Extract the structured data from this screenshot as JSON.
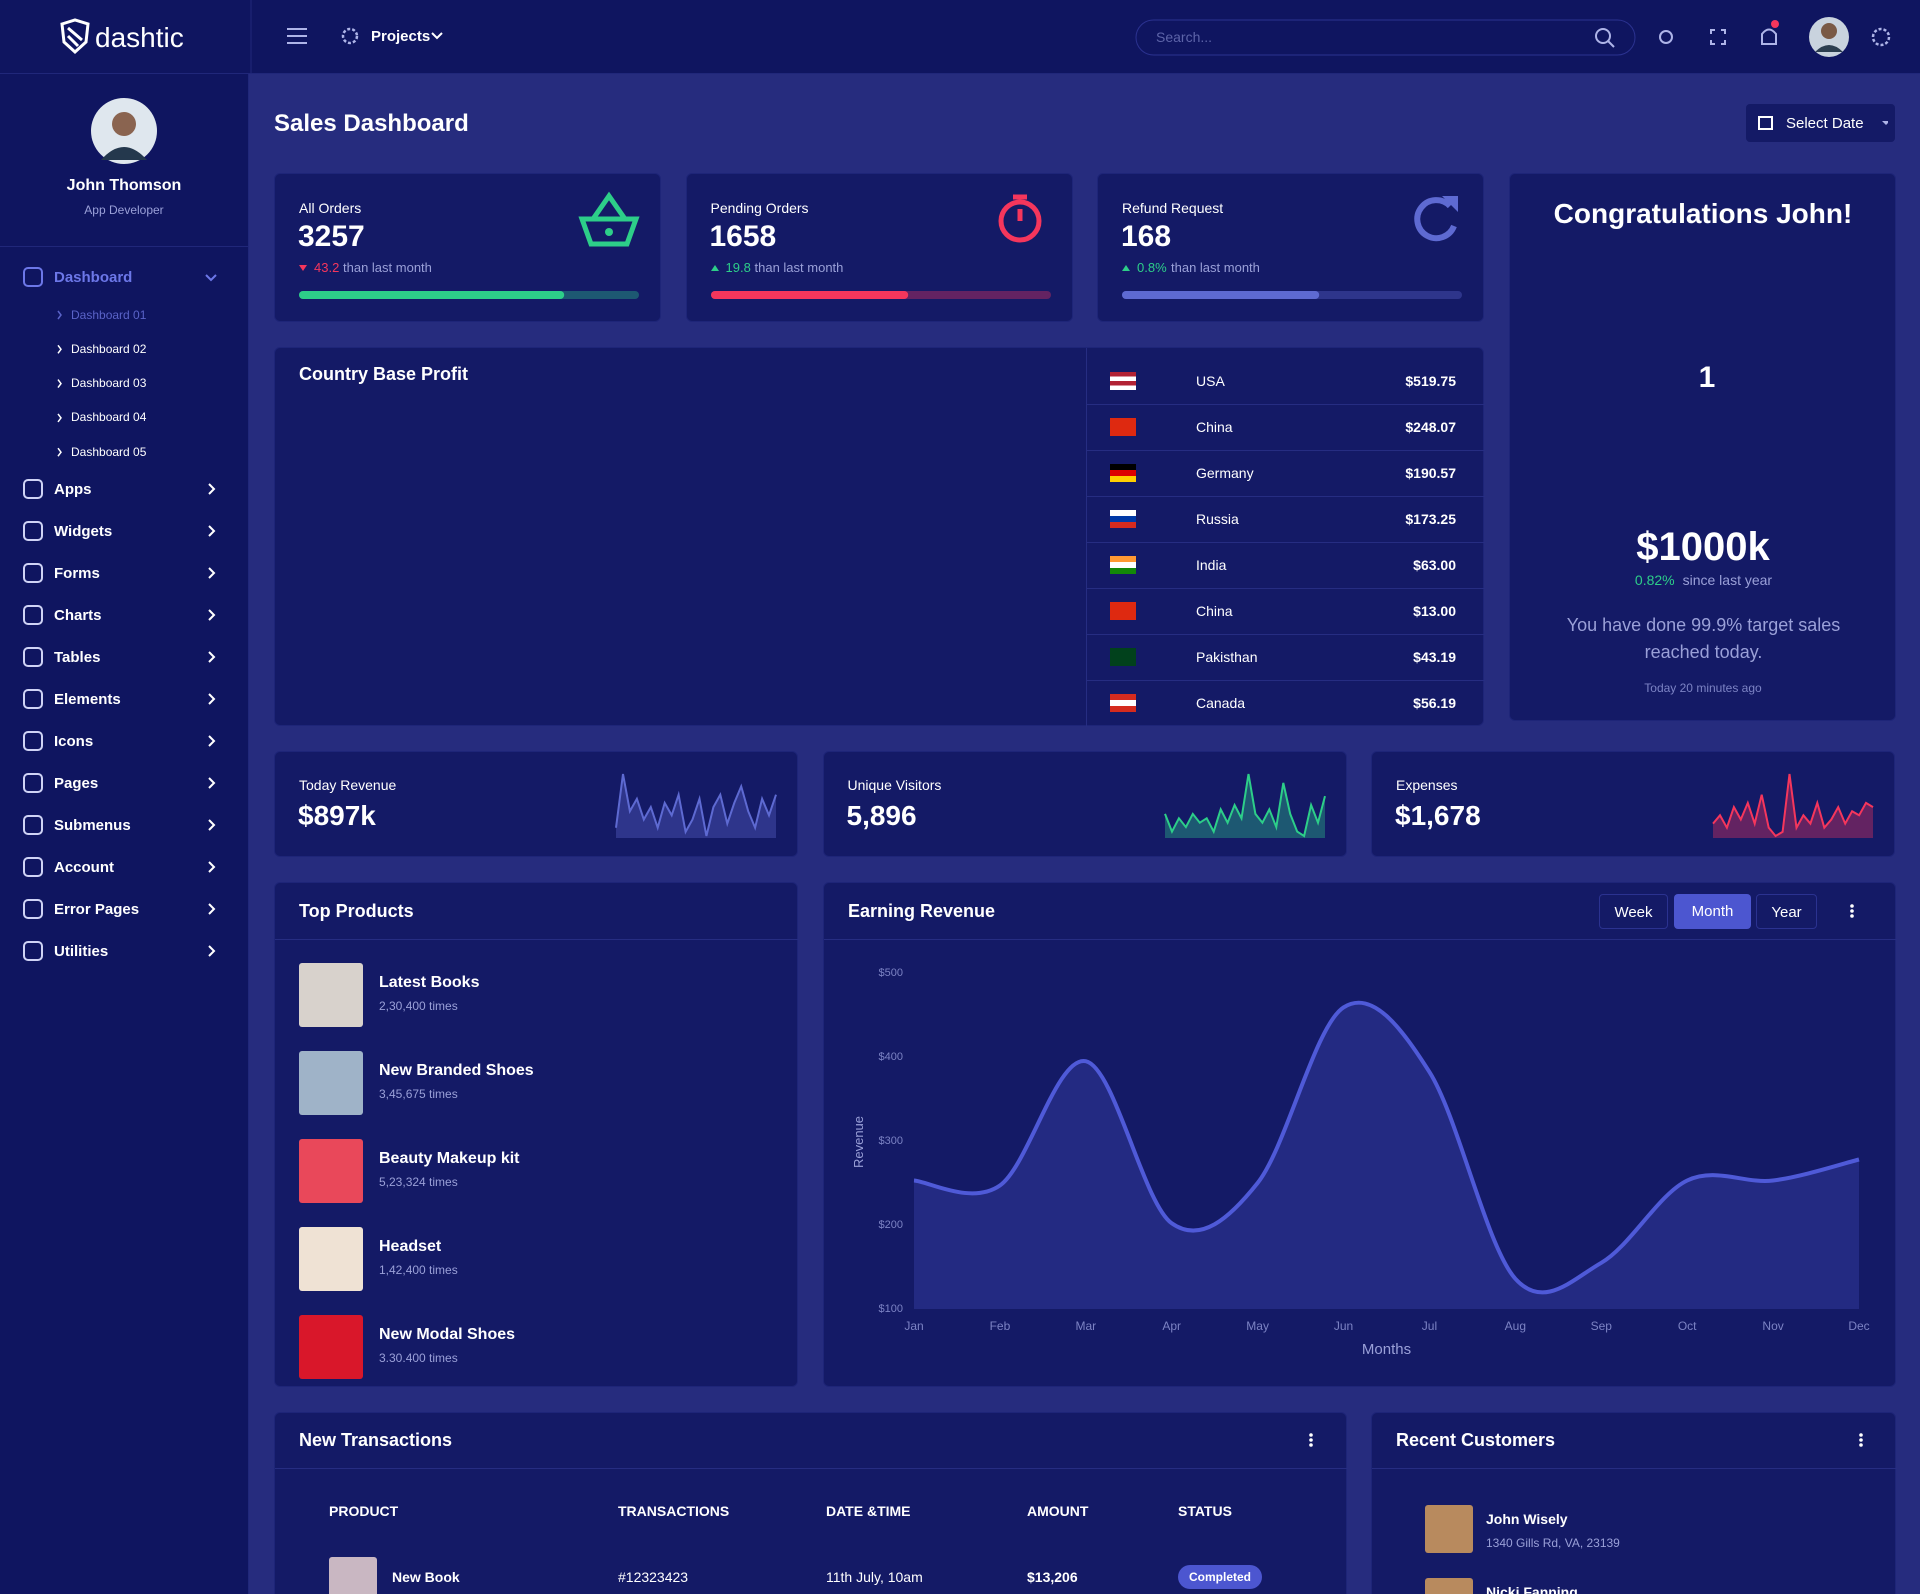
{
  "header": {
    "brand": "dashtic",
    "projects": "Projects",
    "search_placeholder": "Search..."
  },
  "sidebar": {
    "user_name": "John Thomson",
    "user_role": "App Developer",
    "menu": [
      {
        "label": "Dashboard",
        "submenu": [
          "Dashboard 01",
          "Dashboard 02",
          "Dashboard 03",
          "Dashboard 04",
          "Dashboard 05"
        ]
      },
      {
        "label": "Apps"
      },
      {
        "label": "Widgets"
      },
      {
        "label": "Forms"
      },
      {
        "label": "Charts"
      },
      {
        "label": "Tables"
      },
      {
        "label": "Elements"
      },
      {
        "label": "Icons"
      },
      {
        "label": "Pages"
      },
      {
        "label": "Submenus"
      },
      {
        "label": "Account"
      },
      {
        "label": "Error Pages"
      },
      {
        "label": "Utilities"
      }
    ]
  },
  "page": {
    "title": "Sales Dashboard",
    "select_date": "Select Date"
  },
  "stats": [
    {
      "label": "All Orders",
      "value": "3257",
      "change": "43.2",
      "trend": "down",
      "note": "than last month",
      "progress": 78,
      "color": "#2dce89"
    },
    {
      "label": "Pending Orders",
      "value": "1658",
      "change": "19.8",
      "trend": "up",
      "note": "than last month",
      "progress": 58,
      "color": "#f5365c"
    },
    {
      "label": "Refund Request",
      "value": "168",
      "change": "0.8%",
      "trend": "up",
      "note": "than last month",
      "progress": 58,
      "color": "#5e6ad2"
    }
  ],
  "congrats": {
    "title": "Congratulations John!",
    "trophy_label": "1",
    "amount": "$1000k",
    "change": "0.82%",
    "change_note": "since last year",
    "message": "You have done 99.9% target sales reached today.",
    "time": "Today 20 minutes ago"
  },
  "country_profit": {
    "title": "Country Base Profit",
    "rows": [
      {
        "country": "USA",
        "amount": "$519.75",
        "flag": [
          "#b22234",
          "#ffffff",
          "#b22234",
          "#ffffff"
        ]
      },
      {
        "country": "China",
        "amount": "$248.07",
        "flag": [
          "#de2910"
        ]
      },
      {
        "country": "Germany",
        "amount": "$190.57",
        "flag": [
          "#000000",
          "#dd0000",
          "#ffce00"
        ]
      },
      {
        "country": "Russia",
        "amount": "$173.25",
        "flag": [
          "#ffffff",
          "#0039a6",
          "#d52b1e"
        ]
      },
      {
        "country": "India",
        "amount": "$63.00",
        "flag": [
          "#ff9933",
          "#ffffff",
          "#138808"
        ]
      },
      {
        "country": "China",
        "amount": "$13.00",
        "flag": [
          "#de2910"
        ]
      },
      {
        "country": "Pakisthan",
        "amount": "$43.19",
        "flag": [
          "#01411c",
          "#01411c"
        ]
      },
      {
        "country": "Canada",
        "amount": "$56.19",
        "flag": [
          "#d52b1e",
          "#ffffff",
          "#d52b1e"
        ]
      }
    ]
  },
  "mini_stats": [
    {
      "label": "Today Revenue",
      "value": "$897k",
      "color": "#5e6ad2",
      "trend": [
        20,
        85,
        40,
        55,
        30,
        45,
        20,
        50,
        35,
        60,
        15,
        30,
        55,
        10,
        45,
        60,
        25,
        50,
        70,
        40,
        20,
        55,
        35,
        60
      ]
    },
    {
      "label": "Unique Visitors",
      "value": "5,896",
      "color": "#2dce89",
      "trend": [
        40,
        20,
        35,
        25,
        40,
        30,
        35,
        20,
        45,
        30,
        50,
        35,
        85,
        40,
        30,
        45,
        25,
        75,
        40,
        20,
        15,
        50,
        30,
        60
      ]
    },
    {
      "label": "Expenses",
      "value": "$1,678",
      "color": "#f5365c",
      "trend": [
        35,
        45,
        30,
        55,
        40,
        60,
        35,
        70,
        30,
        20,
        25,
        95,
        30,
        45,
        35,
        60,
        30,
        40,
        55,
        35,
        50,
        45,
        60,
        55
      ]
    }
  ],
  "top_products": {
    "title": "Top Products",
    "items": [
      {
        "name": "Latest Books",
        "count": "2,30,400 times",
        "image_color": "#d8d2cc"
      },
      {
        "name": "New Branded Shoes",
        "count": "3,45,675 times",
        "image_color": "#9fb3c8"
      },
      {
        "name": "Beauty Makeup kit",
        "count": "5,23,324 times",
        "image_color": "#e9485a"
      },
      {
        "name": "Headset",
        "count": "1,42,400 times",
        "image_color": "#efe2d4"
      },
      {
        "name": "New Modal Shoes",
        "count": "3.30.400 times",
        "image_color": "#d9172a"
      }
    ]
  },
  "chart_data": {
    "type": "line",
    "title": "Earning Revenue",
    "tabs": [
      "Week",
      "Month",
      "Year"
    ],
    "active_tab": 1,
    "categories": [
      "Jan",
      "Feb",
      "Mar",
      "Apr",
      "May",
      "Jun",
      "Jul",
      "Aug",
      "Sep",
      "Oct",
      "Nov",
      "Dec"
    ],
    "values": [
      253,
      247,
      395,
      202,
      250,
      459,
      382,
      136,
      155,
      253,
      253,
      278
    ],
    "color": "#4f5ad8",
    "x_label": "Months",
    "y_label": "Revenue",
    "ylim": [
      100,
      500
    ],
    "yticks": [
      {
        "value": 100,
        "label": "$100"
      },
      {
        "value": 200,
        "label": "$200"
      },
      {
        "value": 300,
        "label": "$300"
      },
      {
        "value": 400,
        "label": "$400"
      },
      {
        "value": 500,
        "label": "$500"
      }
    ]
  },
  "transactions": {
    "title": "New Transactions",
    "columns": [
      "PRODUCT",
      "TRANSACTIONS",
      "DATE &TIME",
      "AMOUNT",
      "STATUS"
    ],
    "rows": [
      {
        "product": "New Book",
        "id": "#12323423",
        "date": "11th July, 10am",
        "amount": "$13,206",
        "status": "Completed"
      }
    ]
  },
  "customers": {
    "title": "Recent Customers",
    "items": [
      {
        "name": "John Wisely",
        "address": "1340 Gills Rd, VA, 23139"
      },
      {
        "name": "Nicki Fanning"
      }
    ]
  }
}
